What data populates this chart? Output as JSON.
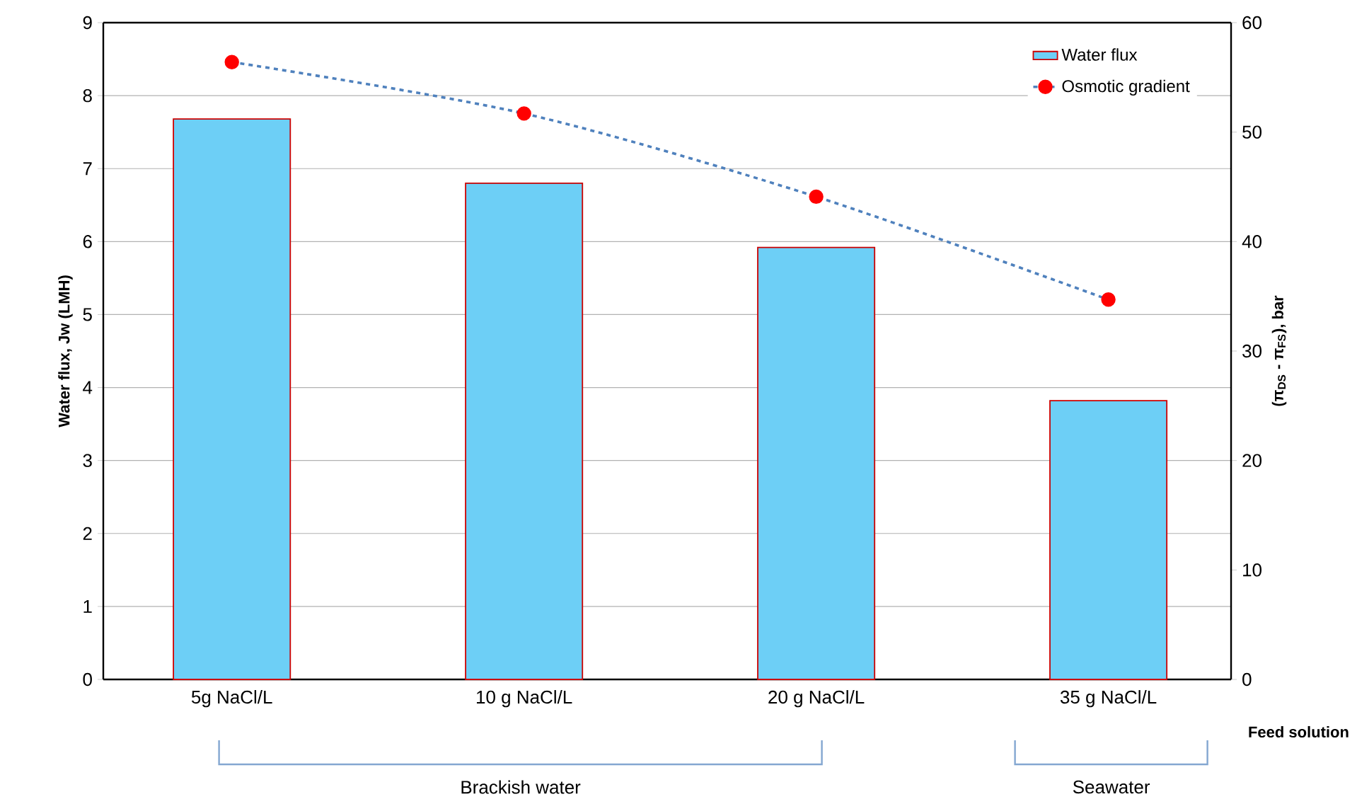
{
  "chart_data": {
    "type": "bar",
    "categories": [
      "5g NaCl/L",
      "10 g NaCl/L",
      "20 g NaCl/L",
      "35  g NaCl/L"
    ],
    "series": [
      {
        "name": "Water flux",
        "color": "#6dcff6",
        "values": [
          7.68,
          6.8,
          5.92,
          3.82
        ]
      },
      {
        "name": "Osmotic gradient",
        "type": "line",
        "axis": "y2",
        "color": "#4f81bd",
        "marker": "circle",
        "line_style": "dashed",
        "values": [
          56.4,
          51.7,
          44.1,
          34.7
        ]
      }
    ],
    "xlabel": "Feed solution",
    "ylabel": "Water flux, Jw (LMH)",
    "y2label": "(π$_{DS}$ - π$_{FS}$), bar",
    "ylim": [
      0,
      9
    ],
    "yticks": [
      0,
      1,
      2,
      3,
      4,
      5,
      6,
      7,
      8,
      9
    ],
    "y2lim": [
      0,
      60
    ],
    "y2ticks": [
      0,
      10,
      20,
      30,
      40,
      50,
      60
    ],
    "grid": "y",
    "legend": "top right",
    "annotations": [
      "Brackish water",
      "Seawater"
    ]
  }
}
